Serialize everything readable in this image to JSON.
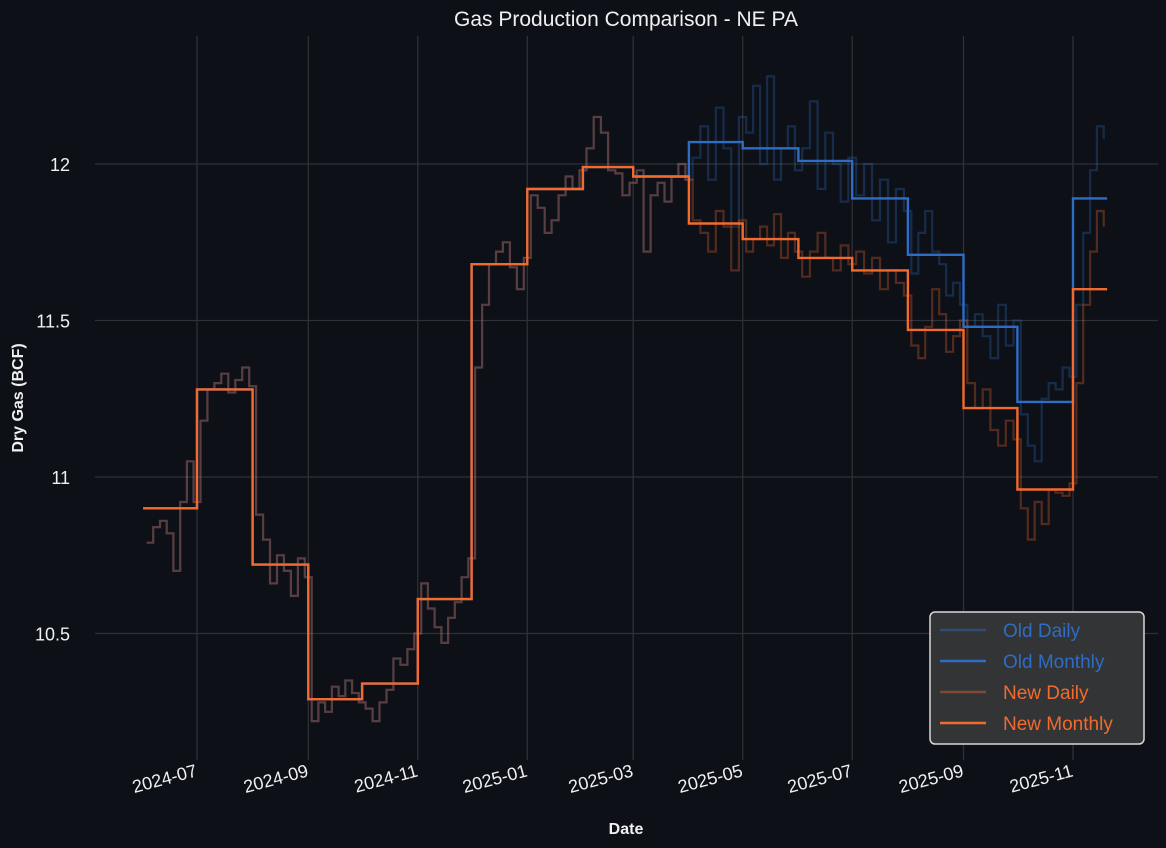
{
  "chart_data": {
    "type": "line",
    "title": "Gas Production Comparison - NE PA",
    "xlabel": "Date",
    "ylabel": "Dry Gas (BCF)",
    "ylim": [
      10.12,
      12.44
    ],
    "xlim": [
      "2024-05-18",
      "2025-12-05"
    ],
    "grid": true,
    "yticks": [
      10.5,
      11,
      11.5,
      12
    ],
    "ytick_labels": [
      "10.5",
      "11",
      "11.5",
      "12"
    ],
    "xticks": [
      "2024-07",
      "2024-09",
      "2024-11",
      "2025-01",
      "2025-03",
      "2025-05",
      "2025-07",
      "2025-09",
      "2025-11"
    ],
    "legend": {
      "placement": "bottom-right",
      "entries": [
        "Old Daily",
        "Old Monthly",
        "New Daily",
        "New Monthly"
      ]
    },
    "colors": {
      "old_daily": "#2d6cc0",
      "old_monthly": "#2f6cc4",
      "new_daily": "#f26a2e",
      "new_monthly": "#f26a2e",
      "background": "#0d1117"
    },
    "end_date": "2025-11-20",
    "series": [
      {
        "name": "New Monthly",
        "kind": "monthly",
        "values": {
          "2024-06": 10.9,
          "2024-07": 11.28,
          "2024-08": 10.72,
          "2024-09": 10.29,
          "2024-10": 10.34,
          "2024-11": 10.61,
          "2024-12": 11.68,
          "2025-01": 11.92,
          "2025-02": 11.99,
          "2025-03": 11.96,
          "2025-04": 11.81,
          "2025-05": 11.76,
          "2025-06": 11.7,
          "2025-07": 11.66,
          "2025-08": 11.47,
          "2025-09": 11.22,
          "2025-10": 10.96,
          "2025-11": 11.6
        }
      },
      {
        "name": "Old Monthly",
        "kind": "monthly",
        "values": {
          "2024-06": 10.9,
          "2024-07": 11.28,
          "2024-08": 10.72,
          "2024-09": 10.29,
          "2024-10": 10.34,
          "2024-11": 10.61,
          "2024-12": 11.68,
          "2025-01": 11.92,
          "2025-02": 11.99,
          "2025-03": 11.96,
          "2025-04": 12.07,
          "2025-05": 12.05,
          "2025-06": 12.01,
          "2025-07": 11.89,
          "2025-08": 11.71,
          "2025-09": 11.48,
          "2025-10": 11.24,
          "2025-11": 11.89
        }
      },
      {
        "name": "New Daily",
        "kind": "daily",
        "values": {
          "2024-06": [
            10.79,
            10.84,
            10.86,
            10.82,
            10.7,
            10.92,
            11.05,
            10.92
          ],
          "2024-07": [
            11.18,
            11.28,
            11.3,
            11.33,
            11.27,
            11.31,
            11.35,
            11.29
          ],
          "2024-08": [
            10.88,
            10.8,
            10.66,
            10.75,
            10.7,
            10.62,
            10.74,
            10.68
          ],
          "2024-09": [
            10.22,
            10.28,
            10.25,
            10.33,
            10.3,
            10.35,
            10.31,
            10.28
          ],
          "2024-10": [
            10.26,
            10.22,
            10.28,
            10.32,
            10.42,
            10.4,
            10.45,
            10.5
          ],
          "2024-11": [
            10.66,
            10.58,
            10.52,
            10.47,
            10.55,
            10.6,
            10.68,
            10.74
          ],
          "2024-12": [
            11.35,
            11.55,
            11.68,
            11.72,
            11.75,
            11.67,
            11.6,
            11.7
          ],
          "2025-01": [
            11.9,
            11.86,
            11.78,
            11.82,
            11.9,
            11.96,
            11.92,
            11.98
          ],
          "2025-02": [
            12.05,
            12.15,
            12.1,
            11.98,
            11.97,
            11.9,
            11.94
          ],
          "2025-03": [
            11.98,
            11.72,
            11.9,
            11.94,
            11.88,
            11.96,
            12.0,
            11.95
          ],
          "2025-04": [
            11.82,
            11.78,
            11.72,
            11.85,
            11.8,
            11.66,
            11.82
          ],
          "2025-05": [
            11.72,
            11.76,
            11.8,
            11.74,
            11.84,
            11.7,
            11.78,
            11.72
          ],
          "2025-06": [
            11.64,
            11.72,
            11.78,
            11.7,
            11.66,
            11.74,
            11.68
          ],
          "2025-07": [
            11.72,
            11.65,
            11.7,
            11.6,
            11.66,
            11.62,
            11.58
          ],
          "2025-08": [
            11.42,
            11.38,
            11.48,
            11.6,
            11.52,
            11.4,
            11.45,
            11.5
          ],
          "2025-09": [
            11.3,
            11.22,
            11.28,
            11.15,
            11.1,
            11.18,
            11.12
          ],
          "2025-10": [
            10.9,
            10.8,
            10.92,
            10.85,
            10.96,
            10.95,
            10.94,
            10.98
          ],
          "2025-11": [
            11.3,
            11.55,
            11.72,
            11.85,
            11.8
          ]
        }
      },
      {
        "name": "Old Daily",
        "kind": "daily",
        "values": {
          "2024-06": [
            10.79,
            10.84,
            10.86,
            10.82,
            10.7,
            10.92,
            11.05,
            10.92
          ],
          "2024-07": [
            11.18,
            11.28,
            11.3,
            11.33,
            11.27,
            11.31,
            11.35,
            11.29
          ],
          "2024-08": [
            10.88,
            10.8,
            10.66,
            10.75,
            10.7,
            10.62,
            10.74,
            10.68
          ],
          "2024-09": [
            10.22,
            10.28,
            10.25,
            10.33,
            10.3,
            10.35,
            10.31,
            10.28
          ],
          "2024-10": [
            10.26,
            10.22,
            10.28,
            10.32,
            10.42,
            10.4,
            10.45,
            10.5
          ],
          "2024-11": [
            10.66,
            10.58,
            10.52,
            10.47,
            10.55,
            10.6,
            10.68,
            10.74
          ],
          "2024-12": [
            11.35,
            11.55,
            11.68,
            11.72,
            11.75,
            11.67,
            11.6,
            11.7
          ],
          "2025-01": [
            11.9,
            11.86,
            11.78,
            11.82,
            11.9,
            11.96,
            11.92,
            11.98
          ],
          "2025-02": [
            12.05,
            12.15,
            12.1,
            11.98,
            11.97,
            11.9,
            11.94
          ],
          "2025-03": [
            11.98,
            11.72,
            11.9,
            11.94,
            11.88,
            11.96,
            12.0,
            11.95
          ],
          "2025-04": [
            12.02,
            12.12,
            11.95,
            12.18,
            12.05,
            11.8,
            12.15
          ],
          "2025-05": [
            12.1,
            12.25,
            12.0,
            12.28,
            11.95,
            12.05,
            12.12,
            11.98
          ],
          "2025-06": [
            12.05,
            12.2,
            11.92,
            12.1,
            12.0,
            11.88,
            12.02
          ],
          "2025-07": [
            11.9,
            12.0,
            11.82,
            11.95,
            11.75,
            11.92,
            11.85
          ],
          "2025-08": [
            11.65,
            11.78,
            11.85,
            11.72,
            11.68,
            11.58,
            11.62,
            11.55
          ],
          "2025-09": [
            11.48,
            11.52,
            11.45,
            11.38,
            11.55,
            11.42,
            11.5
          ],
          "2025-10": [
            11.2,
            11.1,
            11.05,
            11.25,
            11.3,
            11.28,
            11.35,
            11.32
          ],
          "2025-11": [
            11.55,
            11.78,
            11.98,
            12.12,
            12.08
          ]
        }
      }
    ]
  }
}
